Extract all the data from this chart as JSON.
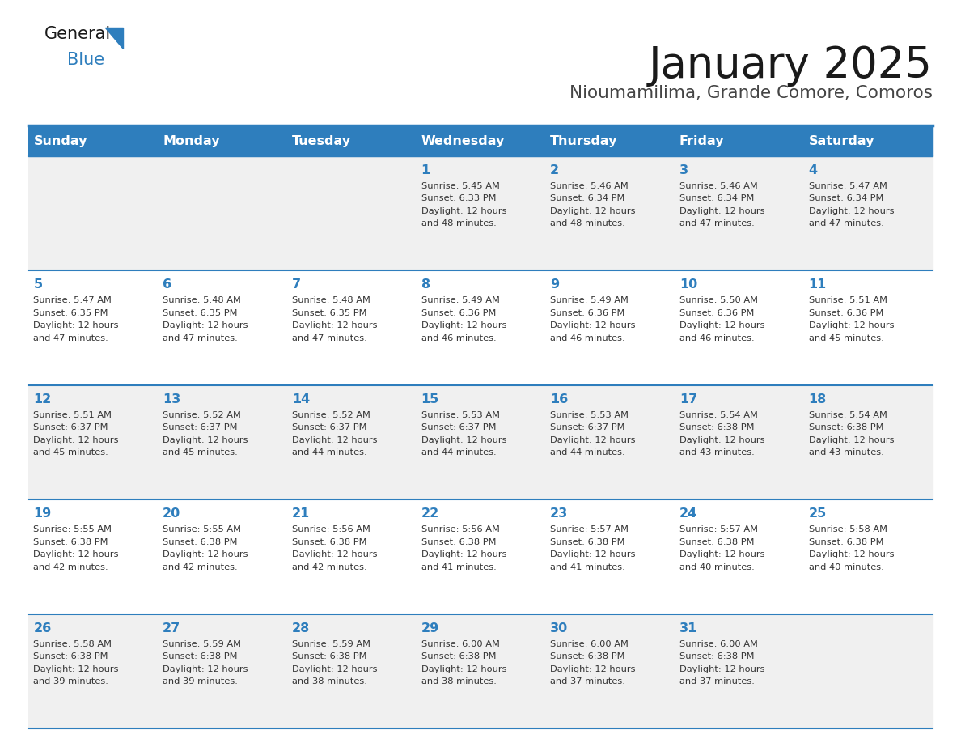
{
  "title": "January 2025",
  "subtitle": "Nioumamilima, Grande Comore, Comoros",
  "days_of_week": [
    "Sunday",
    "Monday",
    "Tuesday",
    "Wednesday",
    "Thursday",
    "Friday",
    "Saturday"
  ],
  "header_bg": "#2E7EBD",
  "header_text": "#FFFFFF",
  "row_bg_odd": "#F0F0F0",
  "row_bg_even": "#FFFFFF",
  "separator_color": "#2E7EBD",
  "day_num_color": "#2E7EBD",
  "text_color": "#333333",
  "calendar": [
    [
      {
        "day": "",
        "sunrise": "",
        "sunset": "",
        "daylight": ""
      },
      {
        "day": "",
        "sunrise": "",
        "sunset": "",
        "daylight": ""
      },
      {
        "day": "",
        "sunrise": "",
        "sunset": "",
        "daylight": ""
      },
      {
        "day": "1",
        "sunrise": "5:45 AM",
        "sunset": "6:33 PM",
        "daylight": "12 hours and 48 minutes."
      },
      {
        "day": "2",
        "sunrise": "5:46 AM",
        "sunset": "6:34 PM",
        "daylight": "12 hours and 48 minutes."
      },
      {
        "day": "3",
        "sunrise": "5:46 AM",
        "sunset": "6:34 PM",
        "daylight": "12 hours and 47 minutes."
      },
      {
        "day": "4",
        "sunrise": "5:47 AM",
        "sunset": "6:34 PM",
        "daylight": "12 hours and 47 minutes."
      }
    ],
    [
      {
        "day": "5",
        "sunrise": "5:47 AM",
        "sunset": "6:35 PM",
        "daylight": "12 hours and 47 minutes."
      },
      {
        "day": "6",
        "sunrise": "5:48 AM",
        "sunset": "6:35 PM",
        "daylight": "12 hours and 47 minutes."
      },
      {
        "day": "7",
        "sunrise": "5:48 AM",
        "sunset": "6:35 PM",
        "daylight": "12 hours and 47 minutes."
      },
      {
        "day": "8",
        "sunrise": "5:49 AM",
        "sunset": "6:36 PM",
        "daylight": "12 hours and 46 minutes."
      },
      {
        "day": "9",
        "sunrise": "5:49 AM",
        "sunset": "6:36 PM",
        "daylight": "12 hours and 46 minutes."
      },
      {
        "day": "10",
        "sunrise": "5:50 AM",
        "sunset": "6:36 PM",
        "daylight": "12 hours and 46 minutes."
      },
      {
        "day": "11",
        "sunrise": "5:51 AM",
        "sunset": "6:36 PM",
        "daylight": "12 hours and 45 minutes."
      }
    ],
    [
      {
        "day": "12",
        "sunrise": "5:51 AM",
        "sunset": "6:37 PM",
        "daylight": "12 hours and 45 minutes."
      },
      {
        "day": "13",
        "sunrise": "5:52 AM",
        "sunset": "6:37 PM",
        "daylight": "12 hours and 45 minutes."
      },
      {
        "day": "14",
        "sunrise": "5:52 AM",
        "sunset": "6:37 PM",
        "daylight": "12 hours and 44 minutes."
      },
      {
        "day": "15",
        "sunrise": "5:53 AM",
        "sunset": "6:37 PM",
        "daylight": "12 hours and 44 minutes."
      },
      {
        "day": "16",
        "sunrise": "5:53 AM",
        "sunset": "6:37 PM",
        "daylight": "12 hours and 44 minutes."
      },
      {
        "day": "17",
        "sunrise": "5:54 AM",
        "sunset": "6:38 PM",
        "daylight": "12 hours and 43 minutes."
      },
      {
        "day": "18",
        "sunrise": "5:54 AM",
        "sunset": "6:38 PM",
        "daylight": "12 hours and 43 minutes."
      }
    ],
    [
      {
        "day": "19",
        "sunrise": "5:55 AM",
        "sunset": "6:38 PM",
        "daylight": "12 hours and 42 minutes."
      },
      {
        "day": "20",
        "sunrise": "5:55 AM",
        "sunset": "6:38 PM",
        "daylight": "12 hours and 42 minutes."
      },
      {
        "day": "21",
        "sunrise": "5:56 AM",
        "sunset": "6:38 PM",
        "daylight": "12 hours and 42 minutes."
      },
      {
        "day": "22",
        "sunrise": "5:56 AM",
        "sunset": "6:38 PM",
        "daylight": "12 hours and 41 minutes."
      },
      {
        "day": "23",
        "sunrise": "5:57 AM",
        "sunset": "6:38 PM",
        "daylight": "12 hours and 41 minutes."
      },
      {
        "day": "24",
        "sunrise": "5:57 AM",
        "sunset": "6:38 PM",
        "daylight": "12 hours and 40 minutes."
      },
      {
        "day": "25",
        "sunrise": "5:58 AM",
        "sunset": "6:38 PM",
        "daylight": "12 hours and 40 minutes."
      }
    ],
    [
      {
        "day": "26",
        "sunrise": "5:58 AM",
        "sunset": "6:38 PM",
        "daylight": "12 hours and 39 minutes."
      },
      {
        "day": "27",
        "sunrise": "5:59 AM",
        "sunset": "6:38 PM",
        "daylight": "12 hours and 39 minutes."
      },
      {
        "day": "28",
        "sunrise": "5:59 AM",
        "sunset": "6:38 PM",
        "daylight": "12 hours and 38 minutes."
      },
      {
        "day": "29",
        "sunrise": "6:00 AM",
        "sunset": "6:38 PM",
        "daylight": "12 hours and 38 minutes."
      },
      {
        "day": "30",
        "sunrise": "6:00 AM",
        "sunset": "6:38 PM",
        "daylight": "12 hours and 37 minutes."
      },
      {
        "day": "31",
        "sunrise": "6:00 AM",
        "sunset": "6:38 PM",
        "daylight": "12 hours and 37 minutes."
      },
      {
        "day": "",
        "sunrise": "",
        "sunset": "",
        "daylight": ""
      }
    ]
  ]
}
